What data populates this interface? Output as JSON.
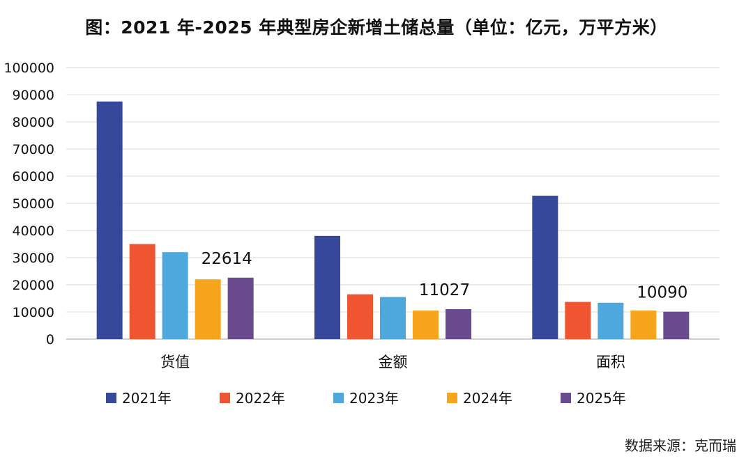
{
  "chart_data": {
    "type": "bar",
    "title": "图：2021 年-2025 年典型房企新增土储总量（单位：亿元，万平方米）",
    "categories": [
      "货值",
      "金额",
      "面积"
    ],
    "series": [
      {
        "name": "2021年",
        "color": "#36489a",
        "values": [
          87500,
          38000,
          52800
        ]
      },
      {
        "name": "2022年",
        "color": "#ef5530",
        "values": [
          35000,
          16500,
          13700
        ]
      },
      {
        "name": "2023年",
        "color": "#4ea8dd",
        "values": [
          32000,
          15500,
          13400
        ]
      },
      {
        "name": "2024年",
        "color": "#f7a51c",
        "values": [
          22000,
          10500,
          10500
        ]
      },
      {
        "name": "2025年",
        "color": "#6a4a8f",
        "values": [
          22614,
          11027,
          10090
        ]
      }
    ],
    "data_labels": [
      {
        "category_index": 0,
        "series_index": 4,
        "text": "22614"
      },
      {
        "category_index": 1,
        "series_index": 4,
        "text": "11027"
      },
      {
        "category_index": 2,
        "series_index": 4,
        "text": "10090"
      }
    ],
    "ylim": [
      0,
      100000
    ],
    "yticks": [
      0,
      10000,
      20000,
      30000,
      40000,
      50000,
      60000,
      70000,
      80000,
      90000,
      100000
    ],
    "grid": true,
    "legend_position": "bottom"
  },
  "source": "数据来源：克而瑞"
}
